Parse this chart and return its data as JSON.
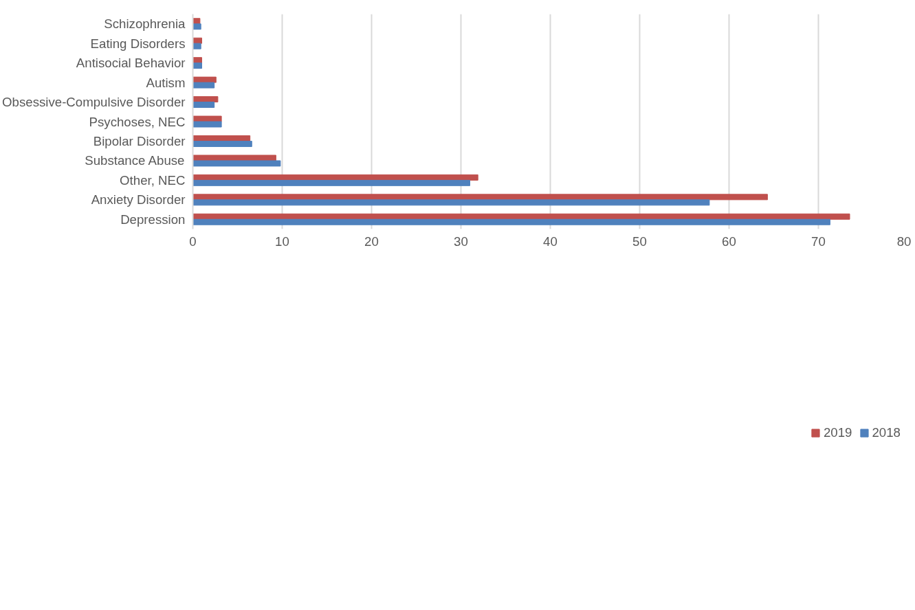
{
  "chart_data": {
    "type": "bar",
    "orientation": "horizontal",
    "categories": [
      "Schizophrenia",
      "Eating Disorders",
      "Antisocial Behavior",
      "Autism",
      "Obsessive-Compulsive Disorder",
      "Psychoses, NEC",
      "Bipolar Disorder",
      "Substance Abuse",
      "Other, NEC",
      "Anxiety Disorder",
      "Depression"
    ],
    "series": [
      {
        "name": "2019",
        "color": "#c0504d",
        "values": [
          0.8,
          1.0,
          1.0,
          2.6,
          2.8,
          3.2,
          6.4,
          9.3,
          31.9,
          64.3,
          73.5
        ]
      },
      {
        "name": "2018",
        "color": "#4f81bd",
        "values": [
          0.9,
          0.9,
          1.0,
          2.4,
          2.4,
          3.2,
          6.6,
          9.8,
          31.0,
          57.8,
          71.3
        ]
      }
    ],
    "xlim": [
      0,
      80
    ],
    "xticks": [
      0,
      10,
      20,
      30,
      40,
      50,
      60,
      70,
      80
    ],
    "grid": "x",
    "legend": "bottom"
  }
}
